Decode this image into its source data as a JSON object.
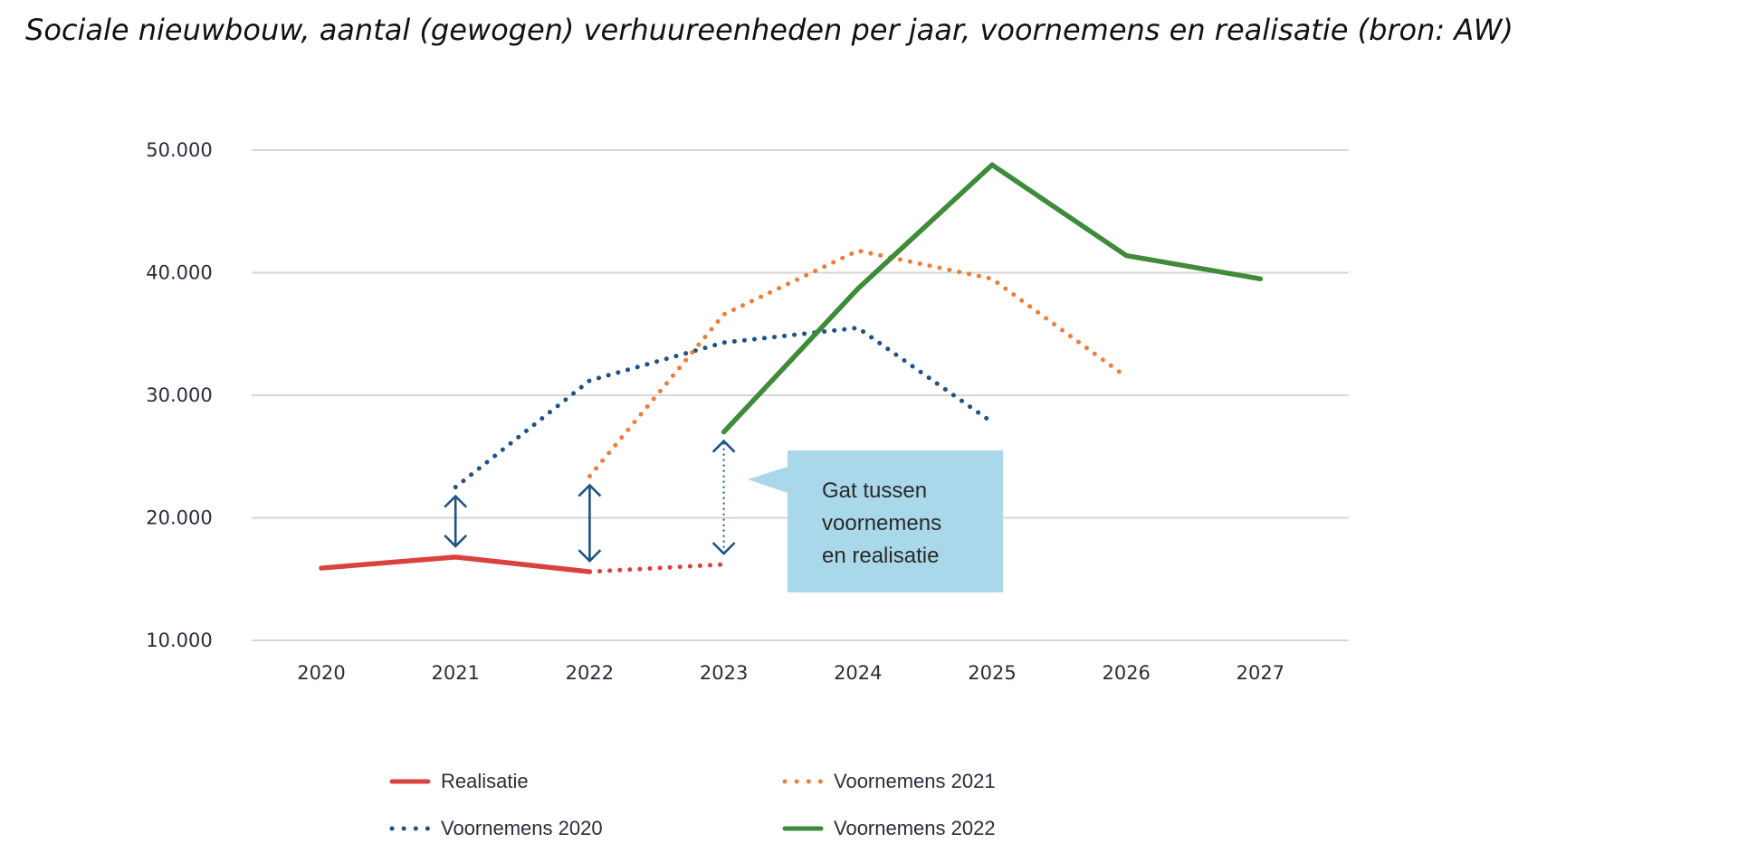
{
  "chart_data": {
    "type": "line",
    "title": "Sociale nieuwbouw, aantal (gewogen) verhuureenheden per jaar, voornemens en realisatie (bron: AW)",
    "xlabel": "",
    "ylabel": "",
    "categories": [
      "2020",
      "2021",
      "2022",
      "2023",
      "2024",
      "2025",
      "2026",
      "2027"
    ],
    "ylim": [
      10000,
      50000
    ],
    "yticks": [
      10000,
      20000,
      30000,
      40000,
      50000
    ],
    "ytick_labels": [
      "10.000",
      "20.000",
      "30.000",
      "40.000",
      "50.000"
    ],
    "grid": "horizontal",
    "legend": "bottom",
    "series": [
      {
        "name": "Realisatie",
        "color": "#d9423f",
        "style": "solid",
        "points": [
          [
            "2020",
            15900
          ],
          [
            "2021",
            16800
          ],
          [
            "2022",
            15600
          ]
        ]
      },
      {
        "name": "",
        "color": "#d9423f",
        "style": "dotted",
        "points": [
          [
            "2022",
            15600
          ],
          [
            "2023",
            16200
          ]
        ]
      },
      {
        "name": "Voornemens 2020",
        "color": "#1f5286",
        "style": "dotted",
        "points": [
          [
            "2021",
            22500
          ],
          [
            "2022",
            31200
          ],
          [
            "2023",
            34300
          ],
          [
            "2024",
            35500
          ],
          [
            "2025",
            27800
          ]
        ]
      },
      {
        "name": "Voornemens 2021",
        "color": "#ec7f3a",
        "style": "dotted",
        "points": [
          [
            "2022",
            23400
          ],
          [
            "2023",
            36600
          ],
          [
            "2024",
            41800
          ],
          [
            "2025",
            39500
          ],
          [
            "2026",
            31500
          ]
        ]
      },
      {
        "name": "Voornemens 2022",
        "color": "#3e8b3a",
        "style": "solid",
        "points": [
          [
            "2023",
            27000
          ],
          [
            "2024",
            38700
          ],
          [
            "2025",
            48800
          ],
          [
            "2026",
            41400
          ],
          [
            "2027",
            39500
          ]
        ]
      }
    ],
    "gap_arrows": [
      {
        "x": "2021",
        "from": 16800,
        "to": 22500,
        "style": "solid"
      },
      {
        "x": "2022",
        "from": 15600,
        "to": 23400,
        "style": "solid"
      },
      {
        "x": "2023",
        "from": 16200,
        "to": 27000,
        "style": "dotted"
      }
    ],
    "annotation": {
      "lines": [
        "Gat tussen",
        "voornemens",
        "en realisatie"
      ],
      "color": "#a9d8ea"
    }
  }
}
